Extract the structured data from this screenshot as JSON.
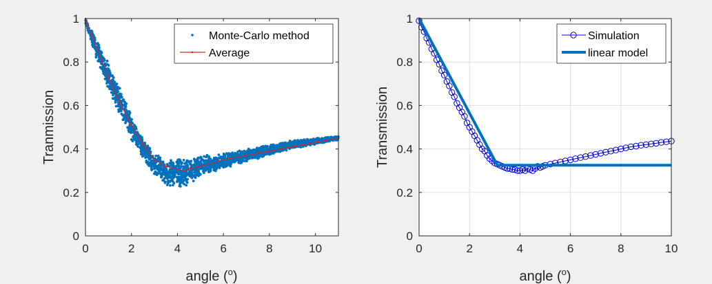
{
  "chart_data": [
    {
      "type": "scatter",
      "xlabel": "angle (",
      "xlabel_sup": "o",
      "xlabel_close": ")",
      "ylabel": "Tranmission",
      "xlim": [
        0,
        11
      ],
      "ylim": [
        0,
        1
      ],
      "xticks": [
        0,
        2,
        4,
        6,
        8,
        10
      ],
      "yticks": [
        0,
        0.2,
        0.4,
        0.6,
        0.8,
        1
      ],
      "ytick_labels": [
        "0",
        "0.2",
        "0.4",
        "0.6",
        "0.8",
        "1"
      ],
      "grid": false,
      "legend_position": "top-right",
      "series": [
        {
          "name": "Monte-Carlo method",
          "kind": "scatter-band",
          "color": "#0072bd",
          "x": [
            0.0,
            0.5,
            1.0,
            1.5,
            2.0,
            2.5,
            3.0,
            3.5,
            4.0,
            4.5,
            5.0,
            6.0,
            7.0,
            8.0,
            9.0,
            10.0,
            11.0
          ],
          "y_low": [
            0.98,
            0.8,
            0.67,
            0.55,
            0.44,
            0.35,
            0.28,
            0.23,
            0.21,
            0.23,
            0.27,
            0.31,
            0.34,
            0.37,
            0.4,
            0.42,
            0.44
          ],
          "y_high": [
            1.0,
            0.91,
            0.8,
            0.68,
            0.56,
            0.45,
            0.38,
            0.35,
            0.37,
            0.36,
            0.37,
            0.38,
            0.4,
            0.42,
            0.44,
            0.45,
            0.46
          ]
        },
        {
          "name": "Average",
          "kind": "line",
          "color": "#d62728",
          "x": [
            0.0,
            0.5,
            1.0,
            1.5,
            2.0,
            2.5,
            3.0,
            3.5,
            4.0,
            4.3,
            4.5,
            5.0,
            6.0,
            7.0,
            8.0,
            9.0,
            10.0,
            11.0
          ],
          "y": [
            1.0,
            0.86,
            0.73,
            0.61,
            0.51,
            0.42,
            0.35,
            0.32,
            0.305,
            0.3,
            0.31,
            0.32,
            0.35,
            0.37,
            0.39,
            0.41,
            0.43,
            0.45
          ]
        }
      ]
    },
    {
      "type": "line",
      "xlabel": "angle (",
      "xlabel_sup": "o",
      "xlabel_close": ")",
      "ylabel": "Transmission",
      "xlim": [
        0,
        10
      ],
      "ylim": [
        0,
        1
      ],
      "xticks": [
        0,
        2,
        4,
        6,
        8,
        10
      ],
      "yticks": [
        0,
        0.2,
        0.4,
        0.6,
        0.8,
        1
      ],
      "ytick_labels": [
        "0",
        "0.2",
        "0.4",
        "0.6",
        "0.8",
        "1"
      ],
      "grid": true,
      "legend_position": "top-right",
      "series": [
        {
          "name": "Simulation",
          "kind": "line-markers",
          "color": "#0000cc",
          "x": [
            0.0,
            0.1,
            0.2,
            0.3,
            0.4,
            0.5,
            0.6,
            0.7,
            0.8,
            0.9,
            1.0,
            1.1,
            1.2,
            1.3,
            1.4,
            1.5,
            1.6,
            1.7,
            1.8,
            1.9,
            2.0,
            2.1,
            2.2,
            2.3,
            2.4,
            2.5,
            2.6,
            2.7,
            2.8,
            2.9,
            3.0,
            3.1,
            3.2,
            3.3,
            3.4,
            3.5,
            3.6,
            3.7,
            3.8,
            3.9,
            4.0,
            4.1,
            4.2,
            4.3,
            4.4,
            4.5,
            4.6,
            4.7,
            4.8,
            4.9,
            5.0,
            5.2,
            5.4,
            5.6,
            5.8,
            6.0,
            6.2,
            6.4,
            6.6,
            6.8,
            7.0,
            7.2,
            7.4,
            7.6,
            7.8,
            8.0,
            8.2,
            8.4,
            8.6,
            8.8,
            9.0,
            9.2,
            9.4,
            9.6,
            9.8,
            10.0
          ],
          "y": [
            0.99,
            0.96,
            0.94,
            0.91,
            0.89,
            0.86,
            0.84,
            0.81,
            0.79,
            0.76,
            0.74,
            0.71,
            0.69,
            0.66,
            0.64,
            0.61,
            0.59,
            0.57,
            0.55,
            0.52,
            0.5,
            0.48,
            0.46,
            0.44,
            0.42,
            0.4,
            0.39,
            0.37,
            0.355,
            0.345,
            0.335,
            0.33,
            0.325,
            0.32,
            0.315,
            0.31,
            0.31,
            0.305,
            0.305,
            0.3,
            0.3,
            0.305,
            0.3,
            0.31,
            0.305,
            0.3,
            0.31,
            0.32,
            0.315,
            0.32,
            0.325,
            0.33,
            0.335,
            0.34,
            0.345,
            0.35,
            0.355,
            0.36,
            0.365,
            0.37,
            0.375,
            0.38,
            0.385,
            0.39,
            0.395,
            0.4,
            0.405,
            0.41,
            0.413,
            0.417,
            0.42,
            0.423,
            0.426,
            0.43,
            0.433,
            0.436
          ]
        },
        {
          "name": "linear model",
          "kind": "line",
          "color": "#0072bd",
          "x": [
            0.0,
            3.1,
            10.0
          ],
          "y": [
            1.0,
            0.325,
            0.325
          ]
        }
      ]
    }
  ]
}
